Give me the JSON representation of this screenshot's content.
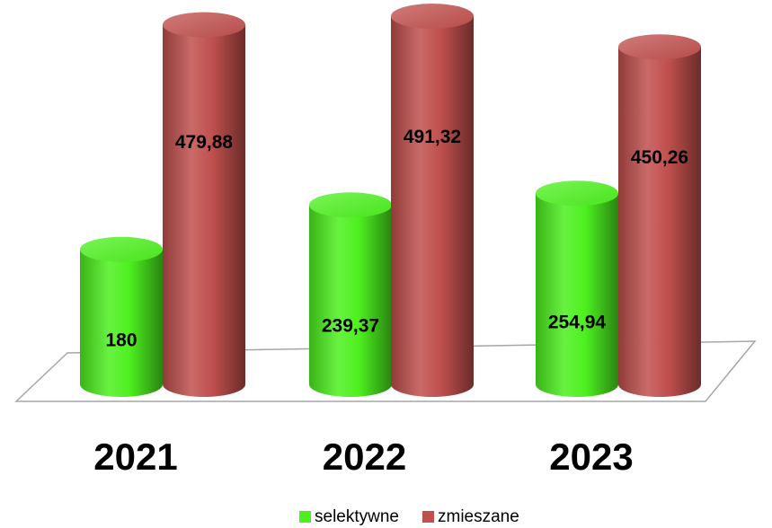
{
  "chart_data": {
    "type": "cylinder-bar",
    "categories": [
      "2021",
      "2022",
      "2023"
    ],
    "series": [
      {
        "name": "selektywne",
        "color": "#4df01f",
        "values": [
          180,
          239.37,
          254.94
        ],
        "value_labels": [
          "180",
          "239,37",
          "254,94"
        ]
      },
      {
        "name": "zmieszane",
        "color": "#c0504d",
        "values": [
          479.88,
          491.32,
          450.26
        ],
        "value_labels": [
          "479,88",
          "491,32",
          "450,26"
        ]
      }
    ],
    "legend": "bottom"
  }
}
